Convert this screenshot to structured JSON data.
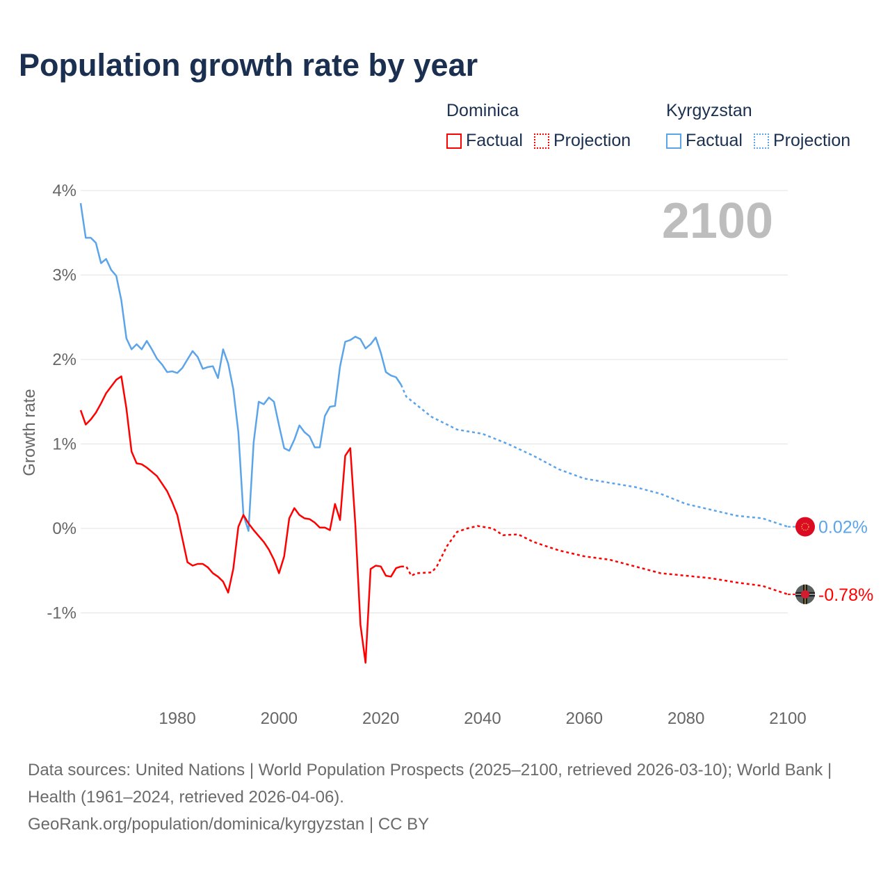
{
  "title": "Population growth rate by year",
  "legend": [
    {
      "country": "Dominica",
      "factual": "Factual",
      "projection": "Projection",
      "color": "#ff0000"
    },
    {
      "country": "Kyrgyzstan",
      "factual": "Factual",
      "projection": "Projection",
      "color": "#5ba4ea"
    }
  ],
  "year_label": "2100",
  "footer": {
    "sources": "Data sources: United Nations | World Population Prospects (2025–2100, retrieved 2026-03-10); World Bank | Health (1961–2024, retrieved 2026-04-06).",
    "credit": "GeoRank.org/population/dominica/kyrgyzstan | CC BY"
  },
  "chart_data": {
    "type": "line",
    "title": "Population growth rate by year",
    "xlabel": "",
    "ylabel": "Growth rate",
    "xlim": [
      1961,
      2100
    ],
    "ylim": [
      -1.9,
      4
    ],
    "x_ticks": [
      1980,
      2000,
      2020,
      2040,
      2060,
      2080,
      2100
    ],
    "y_ticks": [
      {
        "v": 4,
        "label": "4%"
      },
      {
        "v": 3,
        "label": "3%"
      },
      {
        "v": 2,
        "label": "2%"
      },
      {
        "v": 1,
        "label": "1%"
      },
      {
        "v": 0,
        "label": "0%"
      },
      {
        "v": -1,
        "label": "-1%"
      }
    ],
    "grid": true,
    "series": [
      {
        "name": "Kyrgyzstan",
        "color": "#5ba4ea",
        "end_label": "0.02%",
        "factual": {
          "x": [
            1961,
            1962,
            1963,
            1964,
            1965,
            1966,
            1967,
            1968,
            1969,
            1970,
            1971,
            1972,
            1973,
            1974,
            1975,
            1976,
            1977,
            1978,
            1979,
            1980,
            1981,
            1982,
            1983,
            1984,
            1985,
            1986,
            1987,
            1988,
            1989,
            1990,
            1991,
            1992,
            1993,
            1994,
            1995,
            1996,
            1997,
            1998,
            1999,
            2000,
            2001,
            2002,
            2003,
            2004,
            2005,
            2006,
            2007,
            2008,
            2009,
            2010,
            2011,
            2012,
            2013,
            2014,
            2015,
            2016,
            2017,
            2018,
            2019,
            2020,
            2021,
            2022,
            2023,
            2024
          ],
          "y": [
            3.85,
            3.44,
            3.44,
            3.38,
            3.14,
            3.19,
            3.06,
            2.99,
            2.7,
            2.25,
            2.12,
            2.18,
            2.12,
            2.22,
            2.12,
            2.01,
            1.94,
            1.85,
            1.86,
            1.84,
            1.9,
            2.0,
            2.1,
            2.03,
            1.89,
            1.91,
            1.92,
            1.78,
            2.12,
            1.95,
            1.65,
            1.14,
            0.16,
            -0.03,
            1.02,
            1.5,
            1.47,
            1.55,
            1.5,
            1.22,
            0.95,
            0.92,
            1.05,
            1.22,
            1.14,
            1.09,
            0.96,
            0.96,
            1.33,
            1.44,
            1.45,
            1.92,
            2.21,
            2.23,
            2.27,
            2.24,
            2.13,
            2.18,
            2.26,
            2.08,
            1.85,
            1.81,
            1.79,
            1.7
          ]
        },
        "projection": {
          "x": [
            2024,
            2025,
            2030,
            2035,
            2040,
            2045,
            2050,
            2055,
            2060,
            2065,
            2070,
            2075,
            2080,
            2085,
            2090,
            2095,
            2100
          ],
          "y": [
            1.7,
            1.56,
            1.32,
            1.17,
            1.12,
            1.0,
            0.86,
            0.7,
            0.59,
            0.54,
            0.49,
            0.41,
            0.29,
            0.22,
            0.15,
            0.12,
            0.02
          ]
        }
      },
      {
        "name": "Dominica",
        "color": "#ff0000",
        "end_label": "-0.78%",
        "factual": {
          "x": [
            1961,
            1962,
            1963,
            1964,
            1965,
            1966,
            1967,
            1968,
            1969,
            1970,
            1971,
            1972,
            1973,
            1974,
            1975,
            1976,
            1977,
            1978,
            1979,
            1980,
            1981,
            1982,
            1983,
            1984,
            1985,
            1986,
            1987,
            1988,
            1989,
            1990,
            1991,
            1992,
            1993,
            1994,
            1995,
            1996,
            1997,
            1998,
            1999,
            2000,
            2001,
            2002,
            2003,
            2004,
            2005,
            2006,
            2007,
            2008,
            2009,
            2010,
            2011,
            2012,
            2013,
            2014,
            2015,
            2016,
            2017,
            2018,
            2019,
            2020,
            2021,
            2022,
            2023,
            2024
          ],
          "y": [
            1.4,
            1.23,
            1.29,
            1.37,
            1.48,
            1.6,
            1.68,
            1.76,
            1.8,
            1.42,
            0.91,
            0.77,
            0.76,
            0.72,
            0.67,
            0.62,
            0.53,
            0.44,
            0.31,
            0.16,
            -0.12,
            -0.4,
            -0.44,
            -0.42,
            -0.42,
            -0.46,
            -0.53,
            -0.57,
            -0.63,
            -0.76,
            -0.48,
            0.02,
            0.16,
            0.06,
            -0.02,
            -0.09,
            -0.16,
            -0.25,
            -0.37,
            -0.53,
            -0.33,
            0.12,
            0.24,
            0.16,
            0.12,
            0.11,
            0.07,
            0.01,
            0.01,
            -0.02,
            0.29,
            0.1,
            0.86,
            0.95,
            0.04,
            -1.14,
            -1.59,
            -0.48,
            -0.44,
            -0.45,
            -0.56,
            -0.57,
            -0.47,
            -0.45
          ]
        },
        "projection": {
          "x": [
            2024,
            2025,
            2026,
            2027,
            2030,
            2031,
            2033,
            2035,
            2037,
            2039,
            2042,
            2044,
            2047,
            2050,
            2055,
            2060,
            2065,
            2070,
            2075,
            2080,
            2085,
            2090,
            2095,
            2100
          ],
          "y": [
            -0.45,
            -0.45,
            -0.56,
            -0.53,
            -0.52,
            -0.45,
            -0.21,
            -0.04,
            0.0,
            0.03,
            0.0,
            -0.08,
            -0.07,
            -0.16,
            -0.26,
            -0.33,
            -0.37,
            -0.45,
            -0.53,
            -0.56,
            -0.59,
            -0.64,
            -0.68,
            -0.78
          ]
        }
      }
    ]
  }
}
